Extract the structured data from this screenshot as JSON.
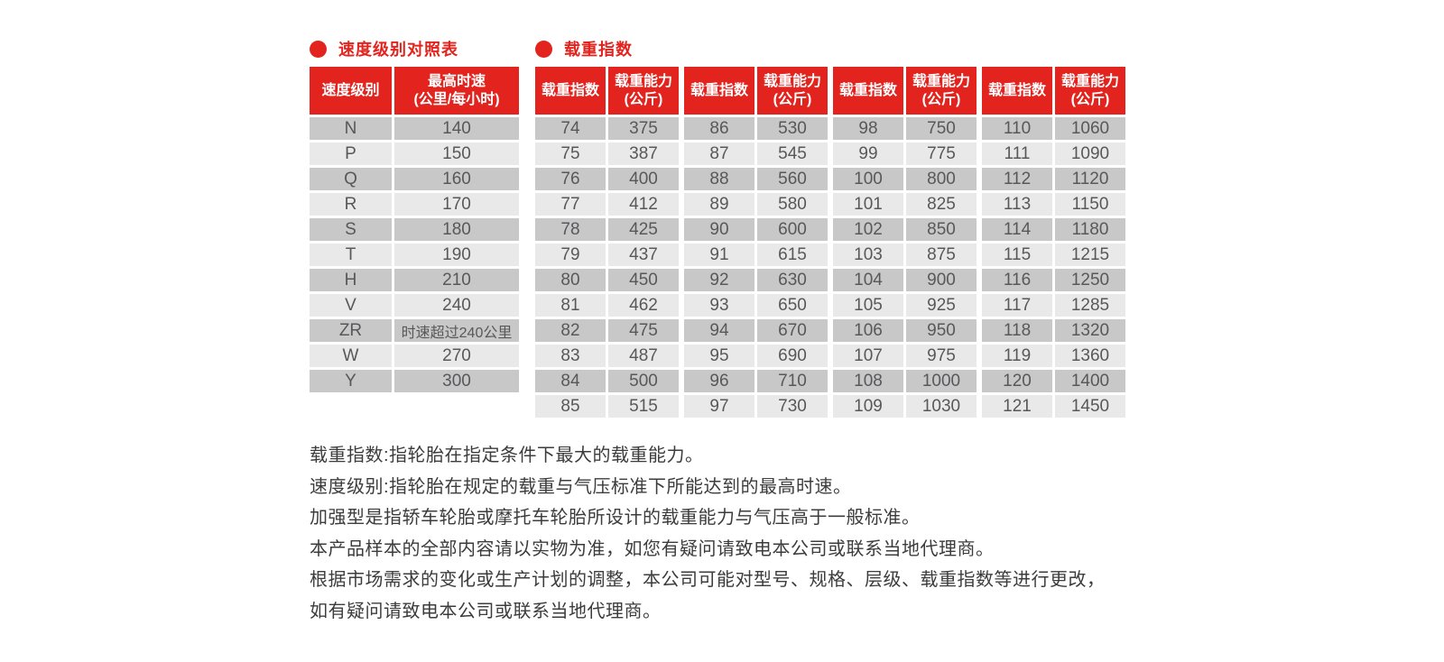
{
  "colors": {
    "accent_red": "#e2231e",
    "row_dark": "#c8c8c9",
    "row_light": "#e9e9e9",
    "cell_text": "#58585a",
    "note_text": "#3c3c3c"
  },
  "speed_table": {
    "title": "速度级别对照表",
    "headers": [
      "速度级别",
      "最高时速\n(公里/每小时)"
    ],
    "rows": [
      [
        "N",
        "140"
      ],
      [
        "P",
        "150"
      ],
      [
        "Q",
        "160"
      ],
      [
        "R",
        "170"
      ],
      [
        "S",
        "180"
      ],
      [
        "T",
        "190"
      ],
      [
        "H",
        "210"
      ],
      [
        "V",
        "240"
      ],
      [
        "ZR",
        "时速超过240公里"
      ],
      [
        "W",
        "270"
      ],
      [
        "Y",
        "300"
      ]
    ]
  },
  "load_table": {
    "title": "载重指数",
    "col_headers": [
      "载重指数",
      "载重能力\n(公斤)"
    ],
    "groups": [
      {
        "rows": [
          [
            "74",
            "375"
          ],
          [
            "75",
            "387"
          ],
          [
            "76",
            "400"
          ],
          [
            "77",
            "412"
          ],
          [
            "78",
            "425"
          ],
          [
            "79",
            "437"
          ],
          [
            "80",
            "450"
          ],
          [
            "81",
            "462"
          ],
          [
            "82",
            "475"
          ],
          [
            "83",
            "487"
          ],
          [
            "84",
            "500"
          ],
          [
            "85",
            "515"
          ]
        ]
      },
      {
        "rows": [
          [
            "86",
            "530"
          ],
          [
            "87",
            "545"
          ],
          [
            "88",
            "560"
          ],
          [
            "89",
            "580"
          ],
          [
            "90",
            "600"
          ],
          [
            "91",
            "615"
          ],
          [
            "92",
            "630"
          ],
          [
            "93",
            "650"
          ],
          [
            "94",
            "670"
          ],
          [
            "95",
            "690"
          ],
          [
            "96",
            "710"
          ],
          [
            "97",
            "730"
          ]
        ]
      },
      {
        "rows": [
          [
            "98",
            "750"
          ],
          [
            "99",
            "775"
          ],
          [
            "100",
            "800"
          ],
          [
            "101",
            "825"
          ],
          [
            "102",
            "850"
          ],
          [
            "103",
            "875"
          ],
          [
            "104",
            "900"
          ],
          [
            "105",
            "925"
          ],
          [
            "106",
            "950"
          ],
          [
            "107",
            "975"
          ],
          [
            "108",
            "1000"
          ],
          [
            "109",
            "1030"
          ]
        ]
      },
      {
        "rows": [
          [
            "110",
            "1060"
          ],
          [
            "111",
            "1090"
          ],
          [
            "112",
            "1120"
          ],
          [
            "113",
            "1150"
          ],
          [
            "114",
            "1180"
          ],
          [
            "115",
            "1215"
          ],
          [
            "116",
            "1250"
          ],
          [
            "117",
            "1285"
          ],
          [
            "118",
            "1320"
          ],
          [
            "119",
            "1360"
          ],
          [
            "120",
            "1400"
          ],
          [
            "121",
            "1450"
          ]
        ]
      }
    ]
  },
  "notes": [
    "载重指数:指轮胎在指定条件下最大的载重能力。",
    "速度级别:指轮胎在规定的载重与气压标准下所能达到的最高时速。",
    "加强型是指轿车轮胎或摩托车轮胎所设计的载重能力与气压高于一般标准。",
    "本产品样本的全部内容请以实物为准，如您有疑问请致电本公司或联系当地代理商。",
    "根据市场需求的变化或生产计划的调整，本公司可能对型号、规格、层级、载重指数等进行更改，",
    "如有疑问请致电本公司或联系当地代理商。"
  ]
}
